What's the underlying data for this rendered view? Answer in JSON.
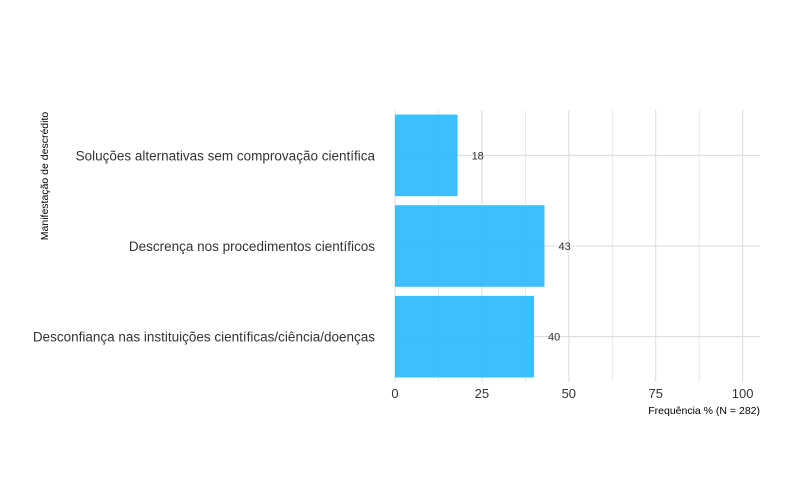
{
  "chart_data": {
    "type": "bar",
    "orientation": "horizontal",
    "categories": [
      "Soluções alternativas sem comprovação científica",
      "Descrença nos procedimentos científicos",
      "Desconfiança nas instituições científicas/ciência/doenças"
    ],
    "values": [
      18,
      43,
      40
    ],
    "value_labels": [
      "18",
      "43",
      "40"
    ],
    "xlabel": "Frequência % (N = 282)",
    "ylabel": "Manifestação de descrédito",
    "xlim": [
      0,
      105
    ],
    "x_ticks": [
      0,
      25,
      50,
      75,
      100
    ],
    "x_tick_labels": [
      "0",
      "25",
      "50",
      "75",
      "100"
    ],
    "grid": true,
    "bar_color": "#33bbff",
    "grid_color": "#dcdcdc"
  }
}
